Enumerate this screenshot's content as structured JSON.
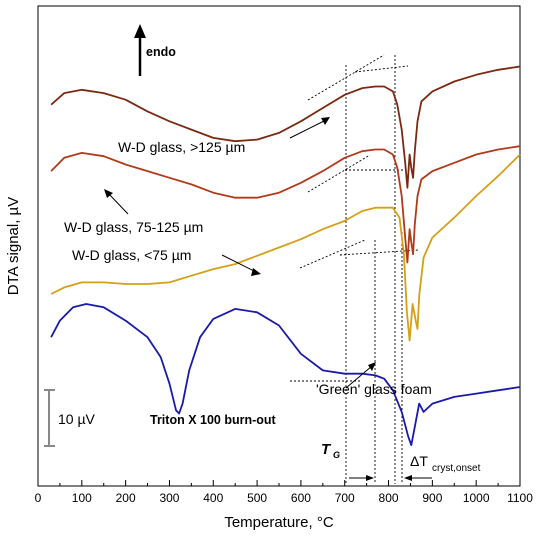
{
  "chart_data": {
    "type": "line",
    "xlabel": "Temperature, °C",
    "ylabel": "DTA signal, µV",
    "xlim": [
      0,
      1100
    ],
    "x_ticks": [
      0,
      100,
      200,
      300,
      400,
      500,
      600,
      700,
      800,
      900,
      1000,
      1100
    ],
    "y_ticks": "none",
    "grid": false,
    "legend": "none",
    "series": [
      {
        "name": "W-D glass, >125 µm",
        "color": "#7a2a12",
        "x": [
          30,
          60,
          100,
          150,
          200,
          250,
          300,
          350,
          400,
          450,
          500,
          550,
          600,
          650,
          700,
          740,
          770,
          790,
          810,
          820,
          830,
          838,
          843,
          848,
          852,
          856,
          860,
          866,
          875,
          900,
          950,
          1000,
          1050,
          1100
        ],
        "y": [
          180,
          187,
          189,
          187,
          183,
          176,
          170,
          165,
          160,
          158,
          159,
          163,
          170,
          178,
          186,
          190,
          191,
          191,
          188,
          180,
          165,
          145,
          130,
          150,
          142,
          136,
          152,
          170,
          182,
          188,
          194,
          198,
          201,
          203
        ]
      },
      {
        "name": "W-D glass, 75-125 µm",
        "color": "#b03a1a",
        "x": [
          30,
          60,
          100,
          150,
          200,
          250,
          300,
          350,
          400,
          450,
          500,
          550,
          600,
          650,
          700,
          740,
          770,
          790,
          810,
          820,
          830,
          838,
          843,
          848,
          852,
          856,
          860,
          866,
          875,
          900,
          950,
          1000,
          1050,
          1100
        ],
        "y": [
          140,
          148,
          151,
          149,
          144,
          140,
          136,
          132,
          127,
          124,
          124,
          127,
          133,
          140,
          148,
          152,
          153,
          153,
          150,
          142,
          125,
          100,
          85,
          105,
          97,
          90,
          108,
          125,
          135,
          140,
          145,
          150,
          153,
          155
        ]
      },
      {
        "name": "W-D glass, <75 µm",
        "color": "#d4a017",
        "x": [
          30,
          60,
          100,
          150,
          200,
          250,
          300,
          350,
          400,
          450,
          500,
          550,
          600,
          650,
          700,
          740,
          770,
          790,
          810,
          825,
          835,
          842,
          848,
          855,
          862,
          866,
          870,
          880,
          900,
          950,
          1000,
          1050,
          1100
        ],
        "y": [
          66,
          70,
          73,
          73,
          72,
          72,
          73,
          77,
          81,
          84,
          89,
          94,
          99,
          105,
          110,
          116,
          118,
          118,
          118,
          112,
          90,
          55,
          38,
          60,
          50,
          45,
          65,
          88,
          100,
          112,
          125,
          137,
          150
        ]
      },
      {
        "name": "'Green' glass foam",
        "color": "#1a1aaa",
        "x": [
          30,
          50,
          80,
          110,
          150,
          200,
          250,
          280,
          300,
          315,
          322,
          330,
          345,
          370,
          400,
          450,
          500,
          550,
          600,
          650,
          700,
          740,
          770,
          790,
          810,
          830,
          845,
          852,
          860,
          870,
          880,
          900,
          950,
          1000,
          1050,
          1100
        ],
        "y": [
          40,
          50,
          58,
          60,
          58,
          50,
          40,
          28,
          12,
          -4,
          -6,
          0,
          20,
          40,
          51,
          57,
          55,
          47,
          30,
          20,
          18,
          18,
          17,
          15,
          8,
          -5,
          -20,
          -25,
          -14,
          0,
          -5,
          0,
          4,
          6,
          8,
          10
        ]
      }
    ],
    "annotations": {
      "endo_arrow": "endo",
      "label_125": "W-D glass, >125 µm",
      "label_75_125": "W-D glass, 75-125 µm",
      "label_75": "W-D glass, <75 µm",
      "label_green": "'Green' glass foam",
      "label_triton": "Triton X 100 burn-out",
      "scale_bar": "10 µV",
      "tg": "T",
      "tg_sub": "G",
      "dtc": "ΔT",
      "dtc_sub": "cryst,onset"
    }
  }
}
